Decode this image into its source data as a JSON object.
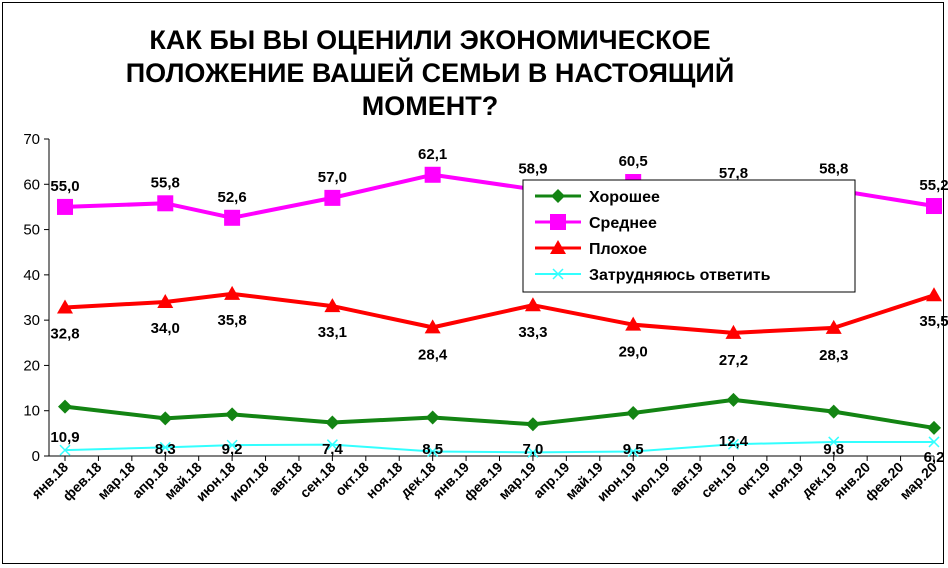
{
  "chart_data": {
    "type": "line",
    "title": "КАК БЫ ВЫ ОЦЕНИЛИ ЭКОНОМИЧЕСКОЕ ПОЛОЖЕНИЕ ВАШЕЙ СЕМЬИ В НАСТОЯЩИЙ МОМЕНТ?",
    "title_lines": [
      "КАК БЫ ВЫ ОЦЕНИЛИ ЭКОНОМИЧЕСКОЕ",
      "ПОЛОЖЕНИЕ ВАШЕЙ СЕМЬИ В НАСТОЯЩИЙ",
      "МОМЕНТ?"
    ],
    "ylim": [
      0,
      70
    ],
    "yticks": [
      0,
      10,
      20,
      30,
      40,
      50,
      60,
      70
    ],
    "grid": false,
    "legend_position": "right",
    "categories": [
      "янв.18",
      "фев.18",
      "мар.18",
      "апр.18",
      "май.18",
      "июн.18",
      "июл.18",
      "авг.18",
      "сен.18",
      "окт.18",
      "ноя.18",
      "дек.18",
      "янв.19",
      "фев.19",
      "мар.19",
      "апр.19",
      "май.19",
      "июн.19",
      "июл.19",
      "авг.19",
      "сен.19",
      "окт.19",
      "ноя.19",
      "дек.19",
      "янв.20",
      "фев.20",
      "мар.20"
    ],
    "series": [
      {
        "name": "Хорошее",
        "color": "#138413",
        "marker": "diamond",
        "x": [
          "янв.18",
          "апр.18",
          "июн.18",
          "сен.18",
          "дек.18",
          "мар.19",
          "июн.19",
          "сен.19",
          "дек.19",
          "мар.20"
        ],
        "values": [
          10.9,
          8.3,
          9.2,
          7.4,
          8.5,
          7.0,
          9.5,
          12.4,
          9.8,
          6.2
        ],
        "labels": [
          "10,9",
          "8,3",
          "9,2",
          "7,4",
          "8,5",
          "7,0",
          "9,5",
          "12,4",
          "9,8",
          "6,2"
        ]
      },
      {
        "name": "Среднее",
        "color": "#ff00ff",
        "marker": "square",
        "x": [
          "янв.18",
          "апр.18",
          "июн.18",
          "сен.18",
          "дек.18",
          "мар.19",
          "июн.19",
          "сен.19",
          "дек.19",
          "мар.20"
        ],
        "values": [
          55.0,
          55.8,
          52.6,
          57.0,
          62.1,
          58.9,
          60.5,
          57.8,
          58.8,
          55.2
        ],
        "labels": [
          "55,0",
          "55,8",
          "52,6",
          "57,0",
          "62,1",
          "58,9",
          "60,5",
          "57,8",
          "58,8",
          "55,2"
        ]
      },
      {
        "name": "Плохое",
        "color": "#ff0000",
        "marker": "triangle",
        "x": [
          "янв.18",
          "апр.18",
          "июн.18",
          "сен.18",
          "дек.18",
          "мар.19",
          "июн.19",
          "сен.19",
          "дек.19",
          "мар.20"
        ],
        "values": [
          32.8,
          34.0,
          35.8,
          33.1,
          28.4,
          33.3,
          29.0,
          27.2,
          28.3,
          35.5
        ],
        "labels": [
          "32,8",
          "34,0",
          "35,8",
          "33,1",
          "28,4",
          "33,3",
          "29,0",
          "27,2",
          "28,3",
          "35,5"
        ]
      },
      {
        "name": "Затрудняюсь ответить",
        "color": "#33ffff",
        "marker": "x",
        "x": [
          "янв.18",
          "апр.18",
          "июн.18",
          "сен.18",
          "дек.18",
          "мар.19",
          "июн.19",
          "сен.19",
          "дек.19",
          "мар.20"
        ],
        "values": [
          1.3,
          1.9,
          2.4,
          2.5,
          1.0,
          0.8,
          1.0,
          2.6,
          3.1,
          3.1
        ],
        "labels": []
      }
    ]
  }
}
